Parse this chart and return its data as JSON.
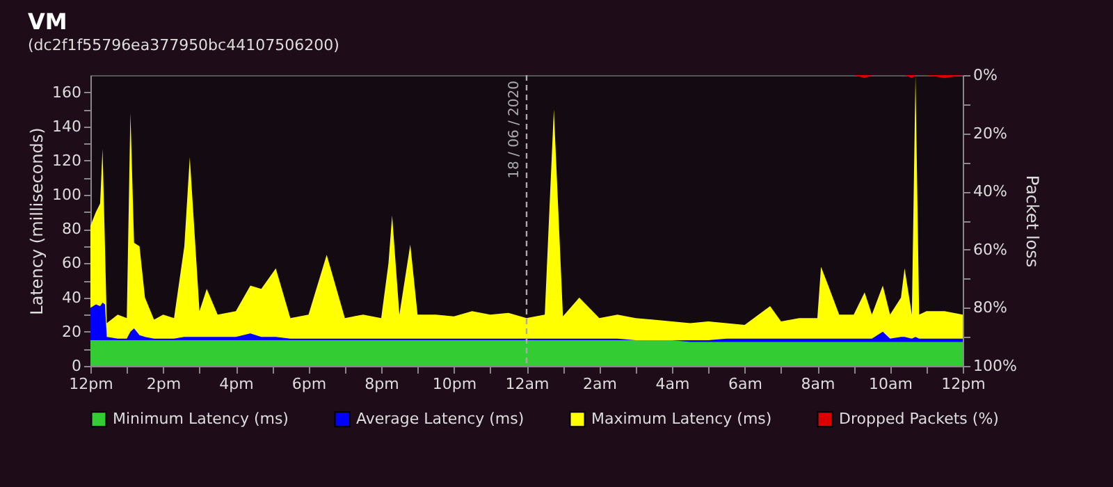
{
  "chart_data": {
    "type": "area",
    "title": "VM",
    "subtitle": "(dc2f1f55796ea377950bc44107506200)",
    "ylabel": "Latency (milliseconds)",
    "y2label": "Packet loss",
    "x": [
      "2020-06-17T12:00",
      "2020-06-17T12:09",
      "2020-06-17T12:16",
      "2020-06-17T12:20",
      "2020-06-17T12:24",
      "2020-06-17T12:27",
      "2020-06-17T12:45",
      "2020-06-17T13:00",
      "2020-06-17T13:06",
      "2020-06-17T13:12",
      "2020-06-17T13:21",
      "2020-06-17T13:30",
      "2020-06-17T13:45",
      "2020-06-17T14:00",
      "2020-06-17T14:18",
      "2020-06-17T14:35",
      "2020-06-17T14:44",
      "2020-06-17T15:00",
      "2020-06-17T15:12",
      "2020-06-17T15:30",
      "2020-06-17T16:00",
      "2020-06-17T16:24",
      "2020-06-17T16:42",
      "2020-06-17T17:06",
      "2020-06-17T17:30",
      "2020-06-17T18:00",
      "2020-06-17T18:30",
      "2020-06-17T19:00",
      "2020-06-17T19:30",
      "2020-06-17T20:00",
      "2020-06-17T20:12",
      "2020-06-17T20:18",
      "2020-06-17T20:30",
      "2020-06-17T20:48",
      "2020-06-17T21:00",
      "2020-06-17T21:30",
      "2020-06-17T22:00",
      "2020-06-17T22:30",
      "2020-06-17T23:00",
      "2020-06-17T23:30",
      "2020-06-18T00:00",
      "2020-06-18T00:30",
      "2020-06-18T00:45",
      "2020-06-18T01:00",
      "2020-06-18T01:27",
      "2020-06-18T02:00",
      "2020-06-18T02:30",
      "2020-06-18T03:00",
      "2020-06-18T03:30",
      "2020-06-18T04:00",
      "2020-06-18T04:30",
      "2020-06-18T05:00",
      "2020-06-18T05:30",
      "2020-06-18T06:00",
      "2020-06-18T06:42",
      "2020-06-18T07:00",
      "2020-06-18T07:30",
      "2020-06-18T08:00",
      "2020-06-18T08:06",
      "2020-06-18T08:18",
      "2020-06-18T08:36",
      "2020-06-18T09:00",
      "2020-06-18T09:18",
      "2020-06-18T09:30",
      "2020-06-18T09:48",
      "2020-06-18T10:00",
      "2020-06-18T10:18",
      "2020-06-18T10:24",
      "2020-06-18T10:36",
      "2020-06-18T10:42",
      "2020-06-18T10:48",
      "2020-06-18T11:00",
      "2020-06-18T11:30",
      "2020-06-18T12:00"
    ],
    "series": [
      {
        "name": "Minimum Latency (ms)",
        "color": "#33cc33",
        "values": [
          15,
          15,
          15,
          15,
          15,
          15,
          15,
          15,
          15,
          15,
          15,
          15,
          15,
          15,
          15,
          15,
          15,
          15,
          15,
          15,
          15,
          15,
          15,
          15,
          15,
          15,
          15,
          15,
          15,
          15,
          15,
          15,
          15,
          15,
          15,
          15,
          15,
          15,
          15,
          15,
          15,
          15,
          15,
          15,
          15,
          15,
          15,
          15,
          15,
          15,
          14,
          14,
          14,
          14,
          14,
          14,
          14,
          14,
          14,
          14,
          14,
          14,
          14,
          14,
          14,
          14,
          14,
          14,
          14,
          14,
          14,
          14,
          14,
          14
        ]
      },
      {
        "name": "Average Latency (ms)",
        "color": "#0000ff",
        "values": [
          34,
          36,
          35,
          37,
          36,
          17,
          16,
          16,
          20,
          22,
          18,
          17,
          16,
          16,
          16,
          17,
          17,
          17,
          17,
          17,
          17,
          19,
          17,
          17,
          16,
          16,
          16,
          16,
          16,
          16,
          16,
          16,
          16,
          16,
          16,
          16,
          16,
          16,
          16,
          16,
          16,
          16,
          16,
          16,
          16,
          16,
          16,
          15,
          15,
          15,
          15,
          15,
          16,
          16,
          16,
          16,
          16,
          16,
          16,
          16,
          16,
          16,
          16,
          16,
          20,
          16,
          17,
          17,
          16,
          17,
          16,
          16,
          16,
          16
        ]
      },
      {
        "name": "Maximum Latency (ms)",
        "color": "#ffff00",
        "values": [
          82,
          90,
          95,
          127,
          70,
          25,
          30,
          28,
          148,
          72,
          70,
          40,
          27,
          30,
          28,
          70,
          122,
          32,
          45,
          30,
          32,
          47,
          45,
          57,
          28,
          30,
          65,
          28,
          30,
          28,
          60,
          88,
          30,
          71,
          30,
          30,
          29,
          32,
          30,
          31,
          28,
          30,
          150,
          29,
          40,
          28,
          30,
          28,
          27,
          26,
          25,
          26,
          25,
          24,
          35,
          26,
          28,
          28,
          58,
          47,
          30,
          30,
          43,
          30,
          47,
          30,
          40,
          57,
          30,
          170,
          30,
          32,
          32,
          30
        ]
      },
      {
        "name": "Dropped Packets (%)",
        "color": "#dd0000",
        "axis": "y2",
        "values": [
          0,
          0,
          0,
          0,
          0,
          0,
          0,
          0,
          0,
          0,
          0,
          0,
          0,
          0,
          0,
          0,
          0,
          0,
          0,
          0,
          0,
          0,
          0,
          0,
          0,
          0,
          0,
          0,
          0,
          0,
          0,
          0,
          0,
          0,
          0,
          0,
          0,
          0,
          0,
          0,
          0,
          0,
          0,
          0,
          0,
          0,
          0,
          0,
          0,
          0,
          0,
          0,
          0,
          0,
          0,
          0,
          0,
          0,
          0,
          0,
          0,
          0,
          1,
          0,
          0,
          0,
          0,
          0,
          1,
          0,
          0,
          0,
          1,
          0
        ]
      }
    ],
    "xlim": [
      "2020-06-17T12:00",
      "2020-06-18T12:00"
    ],
    "xticks": [
      {
        "value": "2020-06-17T12:00",
        "label": "12pm"
      },
      {
        "value": "2020-06-17T13:00",
        "label": null
      },
      {
        "value": "2020-06-17T14:00",
        "label": "2pm"
      },
      {
        "value": "2020-06-17T15:00",
        "label": null
      },
      {
        "value": "2020-06-17T16:00",
        "label": "4pm"
      },
      {
        "value": "2020-06-17T17:00",
        "label": null
      },
      {
        "value": "2020-06-17T18:00",
        "label": "6pm"
      },
      {
        "value": "2020-06-17T19:00",
        "label": null
      },
      {
        "value": "2020-06-17T20:00",
        "label": "8pm"
      },
      {
        "value": "2020-06-17T21:00",
        "label": null
      },
      {
        "value": "2020-06-17T22:00",
        "label": "10pm"
      },
      {
        "value": "2020-06-17T23:00",
        "label": null
      },
      {
        "value": "2020-06-18T00:00",
        "label": "12am"
      },
      {
        "value": "2020-06-18T01:00",
        "label": null
      },
      {
        "value": "2020-06-18T02:00",
        "label": "2am"
      },
      {
        "value": "2020-06-18T03:00",
        "label": null
      },
      {
        "value": "2020-06-18T04:00",
        "label": "4am"
      },
      {
        "value": "2020-06-18T05:00",
        "label": null
      },
      {
        "value": "2020-06-18T06:00",
        "label": "6am"
      },
      {
        "value": "2020-06-18T07:00",
        "label": null
      },
      {
        "value": "2020-06-18T08:00",
        "label": "8am"
      },
      {
        "value": "2020-06-18T09:00",
        "label": null
      },
      {
        "value": "2020-06-18T10:00",
        "label": "10am"
      },
      {
        "value": "2020-06-18T11:00",
        "label": null
      },
      {
        "value": "2020-06-18T12:00",
        "label": "12pm"
      }
    ],
    "ylim": [
      0,
      170
    ],
    "yticks": [
      0,
      {
        "value": 10,
        "label": null
      },
      20,
      {
        "value": 30,
        "label": null
      },
      40,
      {
        "value": 50,
        "label": null
      },
      60,
      {
        "value": 70,
        "label": null
      },
      80,
      {
        "value": 90,
        "label": null
      },
      100,
      {
        "value": 110,
        "label": null
      },
      120,
      {
        "value": 130,
        "label": null
      },
      140,
      {
        "value": 150,
        "label": null
      },
      160
    ],
    "y2lim": [
      100,
      0
    ],
    "y2ticks": [
      {
        "value": 0,
        "label": "0%"
      },
      {
        "value": 10,
        "label": null
      },
      {
        "value": 20,
        "label": "20%"
      },
      {
        "value": 30,
        "label": null
      },
      {
        "value": 40,
        "label": "40%"
      },
      {
        "value": 50,
        "label": null
      },
      {
        "value": 60,
        "label": "60%"
      },
      {
        "value": 70,
        "label": null
      },
      {
        "value": 80,
        "label": "80%"
      },
      {
        "value": 90,
        "label": null
      },
      {
        "value": 100,
        "label": "100%"
      }
    ],
    "ref_lines": [
      {
        "axis": "x",
        "value": "2020-06-18T00:00",
        "label": "18 / 06 / 2020",
        "color": "#aaaaaa",
        "line_style": "dashed"
      }
    ],
    "legend": "bottom",
    "marker": "none"
  }
}
